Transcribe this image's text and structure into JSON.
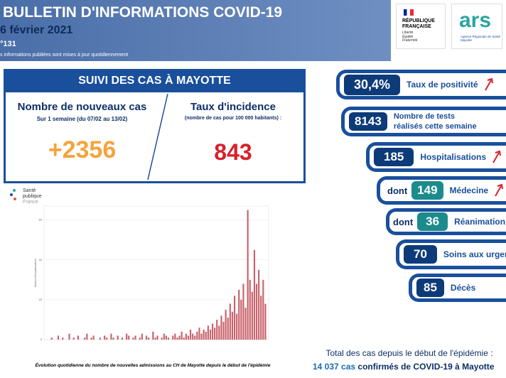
{
  "header": {
    "title": "BULLETIN D'INFORMATIONS COVID-19",
    "date": "6 février 2021",
    "number": "°131",
    "note": "s informations publiées sont mises à jour quotidiennement"
  },
  "logos": {
    "republique": [
      "RÉPUBLIQUE",
      "FRANÇAISE"
    ],
    "motto": [
      "Liberté",
      "Égalité",
      "Fraternité"
    ],
    "ars": "ars",
    "ars_sub": [
      "Agence Régionale de Santé",
      "Mayotte"
    ],
    "spf": [
      "Santé",
      "publique",
      "France"
    ]
  },
  "summary": {
    "title": "SUIVI DES CAS À MAYOTTE",
    "new_cases": {
      "label": "Nombre de nouveaux cas",
      "period": "Sur 1 semaine (du 07/02 au 13/02)",
      "value": "+2356"
    },
    "incidence": {
      "label": "Taux d'incidence",
      "note": "(nombre de cas pour 100 000 habitants) :",
      "value": "843"
    }
  },
  "indicators": [
    {
      "value": "30,4%",
      "label": "Taux de positivité"
    },
    {
      "value": "8143",
      "label": "Nombre de tests",
      "label2": "réalisés cette semaine"
    },
    {
      "value": "185",
      "label": "Hospitalisations"
    },
    {
      "prefix": "dont",
      "value": "149",
      "label": "Médecine"
    },
    {
      "prefix": "dont",
      "value": "36",
      "label": "Réanimation"
    },
    {
      "value": "70",
      "label": "Soins aux urgences"
    },
    {
      "value": "85",
      "label": "Décès"
    }
  ],
  "total": {
    "line1": "Total des cas depuis le début de l'épidémie :",
    "count": "14 037 cas",
    "rest": "confirmés de COVID-19 à Mayotte"
  },
  "chart_data": {
    "type": "bar",
    "ylabel": "Nombre d'hospitalisations",
    "caption": "Évolution quotidienne du nombre de nouvelles admissions au CH de Mayotte depuis le début de l'épidémie",
    "color": "#c8636c",
    "ylim": [
      0,
      67
    ],
    "yticks": [
      0,
      20,
      40,
      60
    ],
    "grid": true,
    "values": [
      0,
      0,
      1,
      0,
      0,
      2,
      0,
      1,
      0,
      0,
      3,
      0,
      1,
      0,
      2,
      0,
      0,
      1,
      3,
      0,
      1,
      2,
      0,
      0,
      1,
      0,
      2,
      1,
      0,
      3,
      1,
      0,
      2,
      0,
      1,
      0,
      3,
      2,
      0,
      1,
      2,
      0,
      1,
      3,
      0,
      2,
      1,
      0,
      4,
      1,
      2,
      0,
      1,
      3,
      2,
      1,
      0,
      2,
      3,
      1,
      2,
      4,
      1,
      3,
      2,
      5,
      3,
      2,
      4,
      6,
      3,
      5,
      4,
      7,
      5,
      8,
      6,
      10,
      7,
      12,
      9,
      15,
      11,
      18,
      14,
      22,
      13,
      25,
      20,
      28,
      16,
      65,
      30,
      24,
      45,
      28,
      35,
      22,
      30,
      18
    ]
  }
}
